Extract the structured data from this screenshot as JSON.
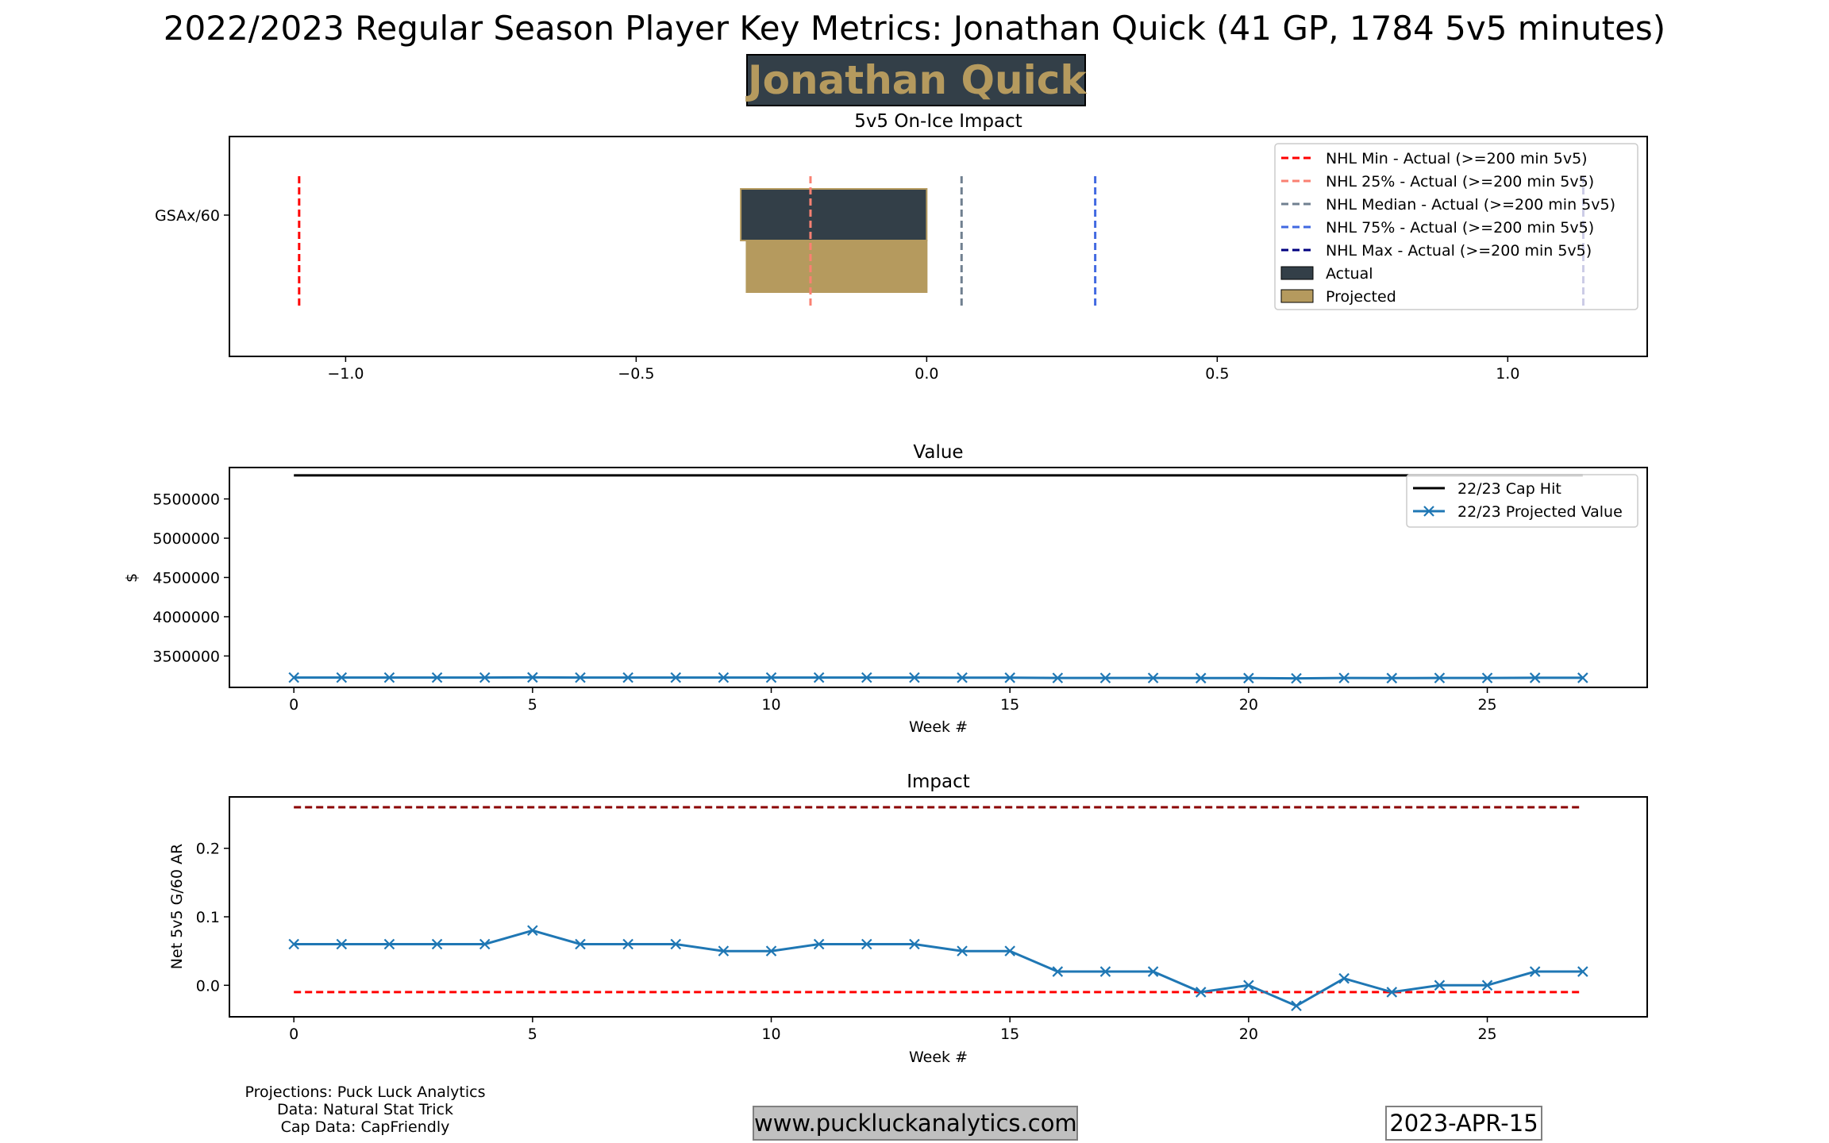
{
  "header": {
    "title": "2022/2023 Regular Season Player Key Metrics: Jonathan Quick (41 GP, 1784 5v5 minutes)",
    "player_name": "Jonathan Quick"
  },
  "footer": {
    "credits": [
      "Projections: Puck Luck Analytics",
      "Data: Natural Stat Trick",
      "Cap Data: CapFriendly"
    ],
    "website": "www.puckluckanalytics.com",
    "date": "2023-APR-15"
  },
  "colors": {
    "actual": "#333F48",
    "projected": "#B59A5E",
    "projected_line": "#1f77b4",
    "cap_hit": "#000000",
    "impact_upper": "#8B0000",
    "impact_lower": "#FF0000",
    "nhl_min": "#FF0000",
    "nhl_25": "#FA8072",
    "nhl_median": "#708090",
    "nhl_75": "#4169E1",
    "nhl_max": "#000080"
  },
  "chart_data": [
    {
      "type": "bar",
      "orientation": "horizontal",
      "title": "5v5 On-Ice Impact",
      "categories": [
        "GSAx/60"
      ],
      "xlim": [
        -1.2,
        1.24
      ],
      "xticks": [
        -1.0,
        -0.5,
        0.0,
        0.5,
        1.0
      ],
      "xtick_labels": [
        "−1.0",
        "−0.5",
        "0.0",
        "0.5",
        "1.0"
      ],
      "series": [
        {
          "name": "Actual",
          "values": [
            -0.32
          ]
        },
        {
          "name": "Projected",
          "values": [
            -0.31
          ]
        }
      ],
      "reference_lines": [
        {
          "name": "NHL Min - Actual (>=200 min 5v5)",
          "value": -1.08
        },
        {
          "name": "NHL 25% - Actual (>=200 min 5v5)",
          "value": -0.2
        },
        {
          "name": "NHL Median - Actual (>=200 min 5v5)",
          "value": 0.06
        },
        {
          "name": "NHL 75% - Actual (>=200 min 5v5)",
          "value": 0.29
        },
        {
          "name": "NHL Max - Actual (>=200 min 5v5)",
          "value": 1.13
        }
      ],
      "legend": "upper right"
    },
    {
      "type": "line",
      "title": "Value",
      "xlabel": "Week #",
      "ylabel": "$",
      "x": [
        0,
        1,
        2,
        3,
        4,
        5,
        6,
        7,
        8,
        9,
        10,
        11,
        12,
        13,
        14,
        15,
        16,
        17,
        18,
        19,
        20,
        21,
        22,
        23,
        24,
        25,
        26,
        27
      ],
      "xlim": [
        -1.35,
        28.35
      ],
      "ylim": [
        3100000,
        5900000
      ],
      "xticks": [
        0,
        5,
        10,
        15,
        20,
        25
      ],
      "yticks": [
        3500000,
        4000000,
        4500000,
        5000000,
        5500000
      ],
      "series": [
        {
          "name": "22/23 Cap Hit",
          "values": [
            5800000,
            5800000,
            5800000,
            5800000,
            5800000,
            5800000,
            5800000,
            5800000,
            5800000,
            5800000,
            5800000,
            5800000,
            5800000,
            5800000,
            5800000,
            5800000,
            5800000,
            5800000,
            5800000,
            5800000,
            5800000,
            5800000,
            5800000,
            5800000,
            5800000,
            5800000,
            5800000,
            5800000
          ]
        },
        {
          "name": "22/23 Projected Value",
          "values": [
            3225000,
            3225000,
            3225000,
            3225000,
            3225000,
            3227000,
            3225000,
            3225000,
            3225000,
            3225000,
            3225000,
            3225000,
            3225000,
            3225000,
            3224000,
            3223000,
            3220000,
            3220000,
            3220000,
            3218000,
            3218000,
            3215000,
            3220000,
            3218000,
            3220000,
            3220000,
            3222000,
            3222000
          ]
        }
      ],
      "legend": "upper right"
    },
    {
      "type": "line",
      "title": "Impact",
      "xlabel": "Week #",
      "ylabel": "Net 5v5 G/60 AR",
      "x": [
        0,
        1,
        2,
        3,
        4,
        5,
        6,
        7,
        8,
        9,
        10,
        11,
        12,
        13,
        14,
        15,
        16,
        17,
        18,
        19,
        20,
        21,
        22,
        23,
        24,
        25,
        26,
        27
      ],
      "xlim": [
        -1.35,
        28.35
      ],
      "ylim": [
        -0.046,
        0.275
      ],
      "xticks": [
        0,
        5,
        10,
        15,
        20,
        25
      ],
      "yticks": [
        0.0,
        0.1,
        0.2
      ],
      "series": [
        {
          "name": "Net 5v5 G/60 AR",
          "values": [
            0.06,
            0.06,
            0.06,
            0.06,
            0.06,
            0.08,
            0.06,
            0.06,
            0.06,
            0.05,
            0.05,
            0.06,
            0.06,
            0.06,
            0.05,
            0.05,
            0.02,
            0.02,
            0.02,
            -0.01,
            0.0,
            -0.03,
            0.01,
            -0.01,
            0.0,
            0.0,
            0.02,
            0.02
          ]
        }
      ],
      "reference_lines": [
        {
          "name": "upper",
          "value": 0.26
        },
        {
          "name": "lower",
          "value": -0.01
        }
      ]
    }
  ]
}
